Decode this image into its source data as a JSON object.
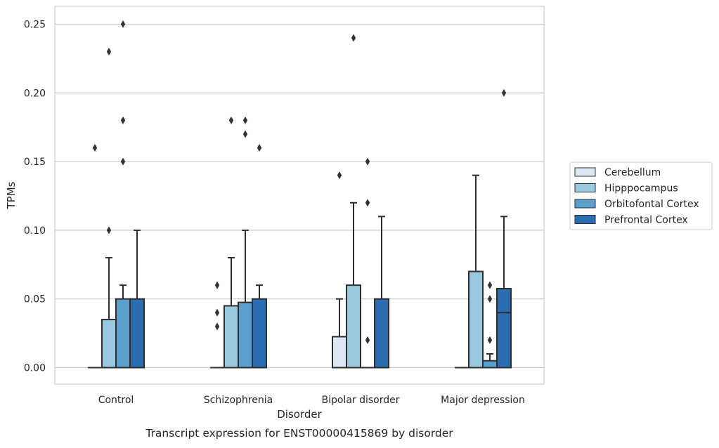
{
  "chart_data": {
    "type": "box",
    "title": "",
    "caption": "Transcript expression for ENST00000415869 by disorder",
    "xlabel": "Disorder",
    "ylabel": "TPMs",
    "ylim": [
      -0.012,
      0.263
    ],
    "yticks": [
      "0.00",
      "0.05",
      "0.10",
      "0.15",
      "0.20",
      "0.25"
    ],
    "ytick_values": [
      0,
      0.05,
      0.1,
      0.15,
      0.2,
      0.25
    ],
    "grid": "horizontal",
    "legend_position": "right",
    "categories": [
      "Control",
      "Schizophrenia",
      "Bipolar disorder",
      "Major depression"
    ],
    "series": [
      {
        "name": "Cerebellum",
        "color": "#dbe9f6",
        "boxes": [
          {
            "q1": 0,
            "median": 0,
            "q3": 0,
            "whisker_low": 0,
            "whisker_high": 0,
            "outliers": [
              0.16
            ]
          },
          {
            "q1": 0,
            "median": 0,
            "q3": 0,
            "whisker_low": 0,
            "whisker_high": 0,
            "outliers": [
              0.03,
              0.04,
              0.06
            ]
          },
          {
            "q1": 0,
            "median": 0,
            "q3": 0.0225,
            "whisker_low": 0,
            "whisker_high": 0.05,
            "outliers": [
              0.14
            ]
          },
          {
            "q1": 0,
            "median": 0,
            "q3": 0,
            "whisker_low": 0,
            "whisker_high": 0,
            "outliers": []
          }
        ]
      },
      {
        "name": "Hipppocampus",
        "color": "#9ac8e0",
        "boxes": [
          {
            "q1": 0,
            "median": 0,
            "q3": 0.035,
            "whisker_low": 0,
            "whisker_high": 0.08,
            "outliers": [
              0.1,
              0.23
            ]
          },
          {
            "q1": 0,
            "median": 0,
            "q3": 0.045,
            "whisker_low": 0,
            "whisker_high": 0.08,
            "outliers": [
              0.18
            ]
          },
          {
            "q1": 0,
            "median": 0,
            "q3": 0.06,
            "whisker_low": 0,
            "whisker_high": 0.12,
            "outliers": [
              0.24
            ]
          },
          {
            "q1": 0,
            "median": 0,
            "q3": 0.07,
            "whisker_low": 0,
            "whisker_high": 0.14,
            "outliers": []
          }
        ]
      },
      {
        "name": "Orbitofontal Cortex",
        "color": "#5a9fcd",
        "boxes": [
          {
            "q1": 0,
            "median": 0,
            "q3": 0.05,
            "whisker_low": 0,
            "whisker_high": 0.06,
            "outliers": [
              0.15,
              0.18,
              0.25
            ]
          },
          {
            "q1": 0,
            "median": 0,
            "q3": 0.0475,
            "whisker_low": 0,
            "whisker_high": 0.1,
            "outliers": [
              0.17,
              0.18
            ]
          },
          {
            "q1": 0,
            "median": 0,
            "q3": 0,
            "whisker_low": 0,
            "whisker_high": 0,
            "outliers": [
              0.02,
              0.12,
              0.15
            ]
          },
          {
            "q1": 0,
            "median": 0,
            "q3": 0.005,
            "whisker_low": 0,
            "whisker_high": 0.01,
            "outliers": [
              0.02,
              0.05,
              0.06
            ]
          }
        ]
      },
      {
        "name": "Prefrontal Cortex",
        "color": "#2a6eb0",
        "boxes": [
          {
            "q1": 0,
            "median": 0,
            "q3": 0.05,
            "whisker_low": 0,
            "whisker_high": 0.1,
            "outliers": []
          },
          {
            "q1": 0,
            "median": 0,
            "q3": 0.05,
            "whisker_low": 0,
            "whisker_high": 0.06,
            "outliers": [
              0.16
            ]
          },
          {
            "q1": 0,
            "median": 0,
            "q3": 0.05,
            "whisker_low": 0,
            "whisker_high": 0.11,
            "outliers": []
          },
          {
            "q1": 0,
            "median": 0.04,
            "q3": 0.0575,
            "whisker_low": 0,
            "whisker_high": 0.11,
            "outliers": [
              0.2
            ]
          }
        ]
      }
    ]
  }
}
